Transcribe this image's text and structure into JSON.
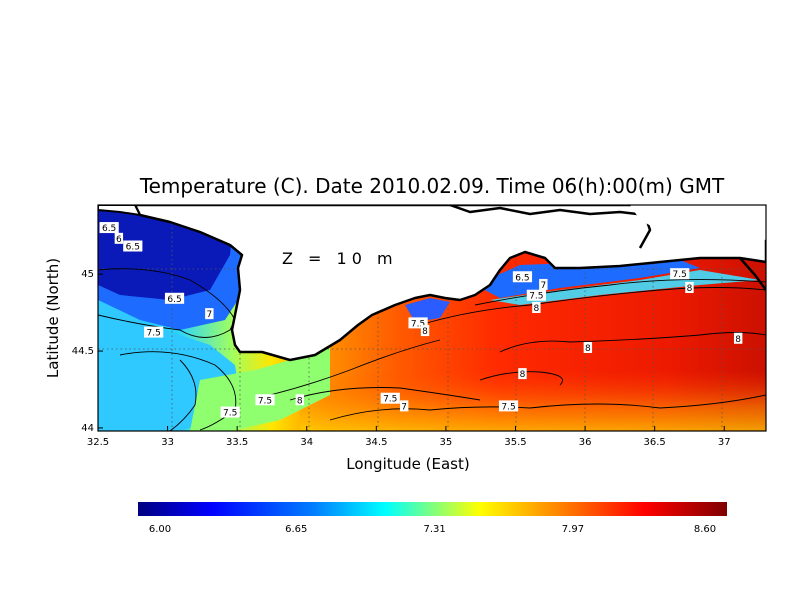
{
  "chart_data": {
    "type": "heatmap",
    "title": "Temperature (C). Date 2010.02.09. Time 06(h):00(m) GMT",
    "xlabel": "Longitude (East)",
    "ylabel": "Latitude (North)",
    "depth_label": "Z = 10 m",
    "xlim": [
      32.5,
      37.3
    ],
    "ylim": [
      43.98,
      45.45
    ],
    "x_ticks": [
      "32.5",
      "33",
      "33.5",
      "34",
      "34.5",
      "35",
      "35.5",
      "36",
      "36.5",
      "37"
    ],
    "y_ticks": [
      "44",
      "44.5",
      "45"
    ],
    "grid": "dotted",
    "colorbar": {
      "min": 6.0,
      "max": 8.6,
      "tick_labels": [
        "6.00",
        "6.65",
        "7.31",
        "7.97",
        "8.60"
      ]
    },
    "contour_labels": [
      {
        "text": "6.5",
        "lon": 32.58,
        "lat": 45.3
      },
      {
        "text": "6",
        "lon": 32.65,
        "lat": 45.23
      },
      {
        "text": "6.5",
        "lon": 32.75,
        "lat": 45.18
      },
      {
        "text": "6.5",
        "lon": 33.05,
        "lat": 44.84
      },
      {
        "text": "7",
        "lon": 33.3,
        "lat": 44.74
      },
      {
        "text": "7.5",
        "lon": 32.9,
        "lat": 44.62
      },
      {
        "text": "7.5",
        "lon": 33.45,
        "lat": 44.1
      },
      {
        "text": "7.5",
        "lon": 33.7,
        "lat": 44.18
      },
      {
        "text": "8",
        "lon": 33.95,
        "lat": 44.18
      },
      {
        "text": "7.5",
        "lon": 34.6,
        "lat": 44.19
      },
      {
        "text": "7",
        "lon": 34.7,
        "lat": 44.14
      },
      {
        "text": "7.5",
        "lon": 34.8,
        "lat": 44.68
      },
      {
        "text": "8",
        "lon": 34.85,
        "lat": 44.63
      },
      {
        "text": "6.5",
        "lon": 35.55,
        "lat": 44.98
      },
      {
        "text": "7",
        "lon": 35.7,
        "lat": 44.93
      },
      {
        "text": "7.5",
        "lon": 35.65,
        "lat": 44.86
      },
      {
        "text": "8",
        "lon": 35.65,
        "lat": 44.78
      },
      {
        "text": "7.5",
        "lon": 36.68,
        "lat": 45.0
      },
      {
        "text": "8",
        "lon": 36.75,
        "lat": 44.91
      },
      {
        "text": "8",
        "lon": 36.02,
        "lat": 44.52
      },
      {
        "text": "8",
        "lon": 37.1,
        "lat": 44.58
      },
      {
        "text": "8",
        "lon": 35.55,
        "lat": 44.35
      },
      {
        "text": "7.5",
        "lon": 35.45,
        "lat": 44.14
      }
    ]
  },
  "colors": {
    "scale": [
      "#00007f",
      "#0000ff",
      "#007fff",
      "#00ffff",
      "#7fff7f",
      "#ffff00",
      "#ff7f00",
      "#ff0000",
      "#7f0000"
    ],
    "coast": "#000000",
    "land": "#ffffff"
  }
}
